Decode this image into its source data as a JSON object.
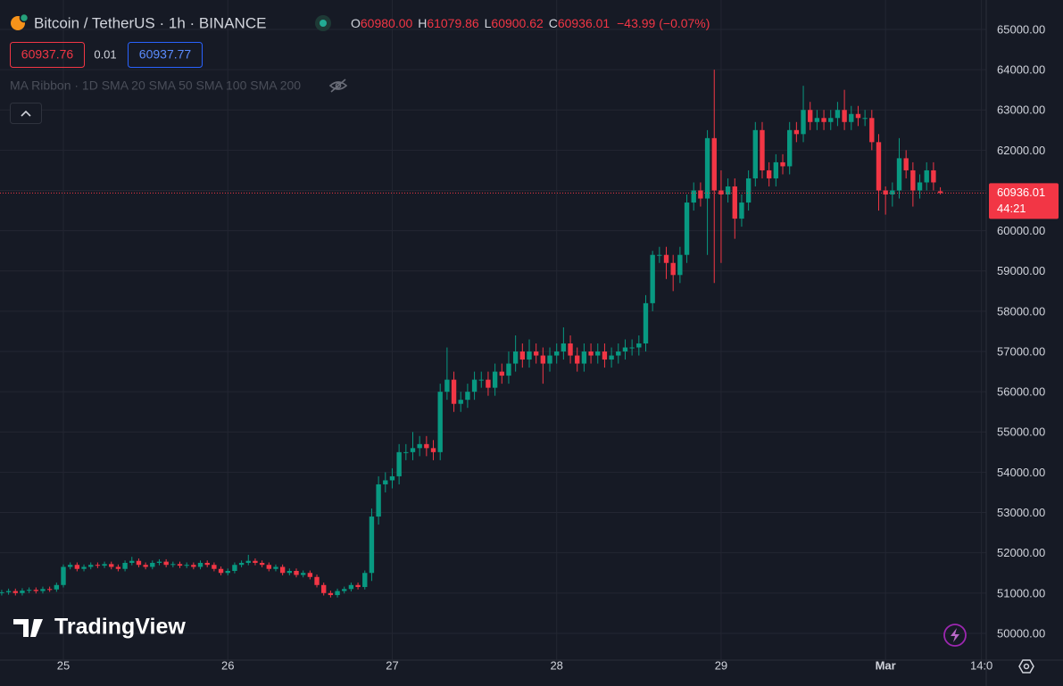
{
  "chart_data": {
    "type": "candlestick",
    "symbol": "Bitcoin / TetherUS · 1h · BINANCE",
    "ohlc_legend": [
      {
        "key": "O",
        "value": "60980.00"
      },
      {
        "key": "H",
        "value": "61079.86"
      },
      {
        "key": "L",
        "value": "60900.62"
      },
      {
        "key": "C",
        "value": "60936.01"
      }
    ],
    "change": "−43.99 (−0.07%)",
    "sell_price": "60937.76",
    "spread": "0.01",
    "buy_price": "60937.77",
    "indicator": "MA Ribbon · 1D SMA 20 SMA 50 SMA 100 SMA 200",
    "watermark": "TradingView",
    "up_color": "#089981",
    "down_color": "#f23645",
    "open": [
      51000,
      51020,
      51050,
      51000,
      51060,
      51080,
      51050,
      51100,
      51090,
      51200,
      51650,
      51700,
      51600,
      51650,
      51700,
      51680,
      51720,
      51650,
      51600,
      51750,
      51800,
      51700,
      51650,
      51750,
      51780,
      51700,
      51720,
      51680,
      51700,
      51650,
      51750,
      51700,
      51600,
      51500,
      51550,
      51700,
      51750,
      51800,
      51750,
      51700,
      51600,
      51650,
      51500,
      51550,
      51450,
      51500,
      51400,
      51200,
      51000,
      50950,
      51050,
      51100,
      51200,
      51150,
      51500,
      52900,
      53700,
      53800,
      53900,
      54500,
      54500,
      54600,
      54700,
      54600,
      54500,
      56000,
      56300,
      55700,
      55800,
      56000,
      56300,
      56300,
      56100,
      56500,
      56400,
      56700,
      57000,
      56800,
      57000,
      56900,
      56700,
      56900,
      57000,
      57200,
      56900,
      56700,
      57000,
      56900,
      57000,
      56800,
      56900,
      57000,
      57100,
      57100,
      57200,
      58200,
      59400,
      59400,
      59200,
      58900,
      59400,
      60700,
      61000,
      60800,
      62300,
      61000,
      60900,
      61100,
      60300,
      60700,
      61300,
      62500,
      61500,
      61300,
      61700,
      61600,
      62500,
      62400,
      63000,
      62700,
      62800,
      62700,
      62800,
      63000,
      62700,
      62900,
      62800,
      62800,
      62200,
      61000,
      60900,
      61000,
      61800,
      61500,
      61000,
      61200,
      61500,
      60980
    ],
    "high": [
      51080,
      51110,
      51110,
      51120,
      51140,
      51140,
      51160,
      51160,
      51260,
      51710,
      51760,
      51760,
      51710,
      51760,
      51760,
      51780,
      51780,
      51710,
      51810,
      51900,
      51860,
      51760,
      51810,
      51840,
      51840,
      51780,
      51780,
      51760,
      51760,
      51810,
      51810,
      51760,
      51660,
      51610,
      51760,
      51810,
      51950,
      51860,
      51810,
      51760,
      51710,
      51710,
      51610,
      51610,
      51560,
      51560,
      51460,
      51260,
      51060,
      51110,
      51160,
      51260,
      51260,
      51560,
      53100,
      53900,
      54000,
      54100,
      54700,
      54700,
      55000,
      54900,
      54900,
      54800,
      56200,
      57100,
      56500,
      56000,
      56200,
      56500,
      56500,
      56500,
      56700,
      56700,
      57000,
      57400,
      57200,
      57300,
      57200,
      57100,
      57100,
      57200,
      57600,
      57400,
      57100,
      57200,
      57200,
      57200,
      57200,
      57100,
      57200,
      57300,
      57300,
      57400,
      58400,
      59500,
      59600,
      59600,
      59400,
      59600,
      60900,
      61200,
      61200,
      62500,
      64000,
      61500,
      61300,
      61300,
      60900,
      61500,
      62700,
      62700,
      61700,
      61900,
      61900,
      62700,
      62700,
      63600,
      63200,
      63000,
      63000,
      63000,
      63200,
      63500,
      63100,
      63100,
      63000,
      63000,
      62400,
      61100,
      61200,
      62300,
      62000,
      61700,
      61400,
      61700,
      61700,
      61079.86
    ],
    "low": [
      50940,
      50960,
      50940,
      50940,
      51000,
      50990,
      50990,
      51030,
      51030,
      51140,
      51590,
      51540,
      51540,
      51590,
      51620,
      51620,
      51590,
      51540,
      51540,
      51690,
      51640,
      51590,
      51590,
      51690,
      51640,
      51640,
      51620,
      51620,
      51590,
      51590,
      51640,
      51540,
      51440,
      51440,
      51490,
      51640,
      51690,
      51690,
      51640,
      51540,
      51540,
      51440,
      51440,
      51390,
      51390,
      51340,
      51140,
      50940,
      50890,
      50890,
      50990,
      51040,
      51090,
      51090,
      51300,
      52700,
      53500,
      53600,
      53700,
      54300,
      54300,
      54400,
      54400,
      54300,
      54300,
      55800,
      55500,
      55500,
      55600,
      55800,
      56100,
      55900,
      55900,
      56200,
      56200,
      56500,
      56600,
      56600,
      56700,
      56200,
      56500,
      56700,
      56800,
      56700,
      56500,
      56500,
      56700,
      56700,
      56600,
      56600,
      56700,
      56800,
      56900,
      56900,
      57000,
      58000,
      59200,
      58800,
      58500,
      58700,
      59200,
      60500,
      60600,
      59400,
      58700,
      59200,
      60700,
      59800,
      60100,
      60500,
      61100,
      61300,
      61100,
      61100,
      61400,
      61400,
      62200,
      62200,
      62500,
      62500,
      62500,
      62500,
      62600,
      62500,
      62500,
      62600,
      62600,
      62000,
      60500,
      60400,
      60600,
      60800,
      61300,
      60600,
      60800,
      61000,
      61000,
      60900.62
    ],
    "close": [
      51020,
      51050,
      51000,
      51060,
      51080,
      51050,
      51100,
      51090,
      51200,
      51650,
      51700,
      51600,
      51650,
      51700,
      51680,
      51720,
      51650,
      51600,
      51750,
      51800,
      51700,
      51650,
      51750,
      51780,
      51700,
      51720,
      51680,
      51700,
      51650,
      51750,
      51700,
      51600,
      51500,
      51550,
      51700,
      51750,
      51800,
      51750,
      51700,
      51600,
      51650,
      51500,
      51550,
      51450,
      51500,
      51400,
      51200,
      51000,
      50950,
      51050,
      51100,
      51200,
      51150,
      51500,
      52900,
      53700,
      53800,
      53900,
      54500,
      54500,
      54600,
      54700,
      54600,
      54500,
      56000,
      56300,
      55700,
      55800,
      56000,
      56300,
      56300,
      56100,
      56500,
      56400,
      56700,
      57000,
      56800,
      57000,
      56900,
      56700,
      56900,
      57000,
      57200,
      56900,
      56700,
      57000,
      56900,
      57000,
      56800,
      56900,
      57000,
      57100,
      57100,
      57200,
      58200,
      59400,
      59400,
      59200,
      58900,
      59400,
      60700,
      61000,
      60800,
      62300,
      61000,
      60900,
      61100,
      60300,
      60700,
      61300,
      62500,
      61500,
      61300,
      61700,
      61600,
      62500,
      62400,
      63000,
      62700,
      62800,
      62700,
      62800,
      63000,
      62700,
      62900,
      62800,
      62800,
      62200,
      61000,
      60900,
      61000,
      61800,
      61500,
      61000,
      61200,
      61500,
      61200,
      60936.01
    ],
    "last_price": {
      "value": 60936.01,
      "label": "60936.01"
    },
    "countdown": "44:21",
    "xlim": [
      -0.25,
      143.7
    ],
    "xticks": [
      {
        "value": 9,
        "label": "25"
      },
      {
        "value": 33,
        "label": "26"
      },
      {
        "value": 57,
        "label": "27"
      },
      {
        "value": 81,
        "label": "28"
      },
      {
        "value": 105,
        "label": "29"
      },
      {
        "value": 129,
        "label": "Mar"
      },
      {
        "value": 143,
        "label": "14:0"
      }
    ],
    "ylim": [
      49334,
      65731
    ],
    "yticks": [
      {
        "value": 50000,
        "label": "50000.00"
      },
      {
        "value": 51000,
        "label": "51000.00"
      },
      {
        "value": 52000,
        "label": "52000.00"
      },
      {
        "value": 53000,
        "label": "53000.00"
      },
      {
        "value": 54000,
        "label": "54000.00"
      },
      {
        "value": 55000,
        "label": "55000.00"
      },
      {
        "value": 56000,
        "label": "56000.00"
      },
      {
        "value": 57000,
        "label": "57000.00"
      },
      {
        "value": 58000,
        "label": "58000.00"
      },
      {
        "value": 59000,
        "label": "59000.00"
      },
      {
        "value": 60000,
        "label": "60000.00"
      },
      {
        "value": 61000,
        "label": "61000.00"
      },
      {
        "value": 62000,
        "label": "62000.00"
      },
      {
        "value": 63000,
        "label": "63000.00"
      },
      {
        "value": 64000,
        "label": "64000.00"
      },
      {
        "value": 65000,
        "label": "65000.00"
      }
    ],
    "grid": true
  }
}
